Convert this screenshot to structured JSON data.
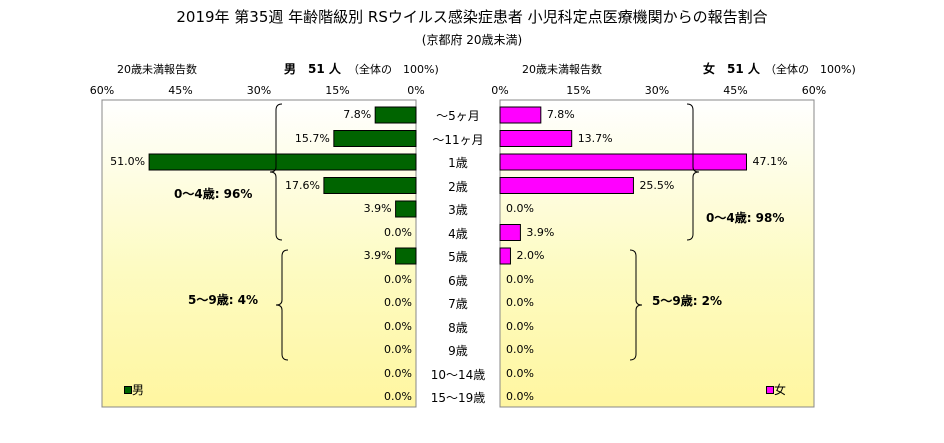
{
  "chart_data": {
    "type": "bar",
    "title": "2019年 第35週 年齢階級別 RSウイルス感染症患者 小児科定点医療機関からの報告割合",
    "subtitle": "(京都府 20歳未満)",
    "categories": [
      "～5ヶ月",
      "～11ヶ月",
      "1歳",
      "2歳",
      "3歳",
      "4歳",
      "5歳",
      "6歳",
      "7歳",
      "8歳",
      "9歳",
      "10～14歳",
      "15～19歳"
    ],
    "x_ticks": [
      "60%",
      "45%",
      "30%",
      "15%",
      "0%",
      "0%",
      "15%",
      "30%",
      "45%",
      "60%"
    ],
    "xlim": [
      0,
      60
    ],
    "series": [
      {
        "name": "男",
        "header_label": "20歳未満報告数",
        "header_count": "男　51 人",
        "header_total": "（全体の　100%)",
        "color": "#006400",
        "values": [
          7.8,
          15.7,
          51.0,
          17.6,
          3.9,
          0.0,
          3.9,
          0.0,
          0.0,
          0.0,
          0.0,
          0.0,
          0.0
        ],
        "labels": [
          "7.8%",
          "15.7%",
          "51.0%",
          "17.6%",
          "3.9%",
          "0.0%",
          "3.9%",
          "0.0%",
          "0.0%",
          "0.0%",
          "0.0%",
          "0.0%",
          "0.0%"
        ],
        "annotations": [
          "0～4歳: 96%",
          "5～9歳: 4%"
        ]
      },
      {
        "name": "女",
        "header_label": "20歳未満報告数",
        "header_count": "女　51 人",
        "header_total": "（全体の　100%)",
        "color": "#ff00ff",
        "values": [
          7.8,
          13.7,
          47.1,
          25.5,
          0.0,
          3.9,
          2.0,
          0.0,
          0.0,
          0.0,
          0.0,
          0.0,
          0.0
        ],
        "labels": [
          "7.8%",
          "13.7%",
          "47.1%",
          "25.5%",
          "0.0%",
          "3.9%",
          "2.0%",
          "0.0%",
          "0.0%",
          "0.0%",
          "0.0%",
          "0.0%",
          "0.0%"
        ],
        "annotations": [
          "0～4歳: 98%",
          "5～9歳: 2%"
        ]
      }
    ]
  }
}
